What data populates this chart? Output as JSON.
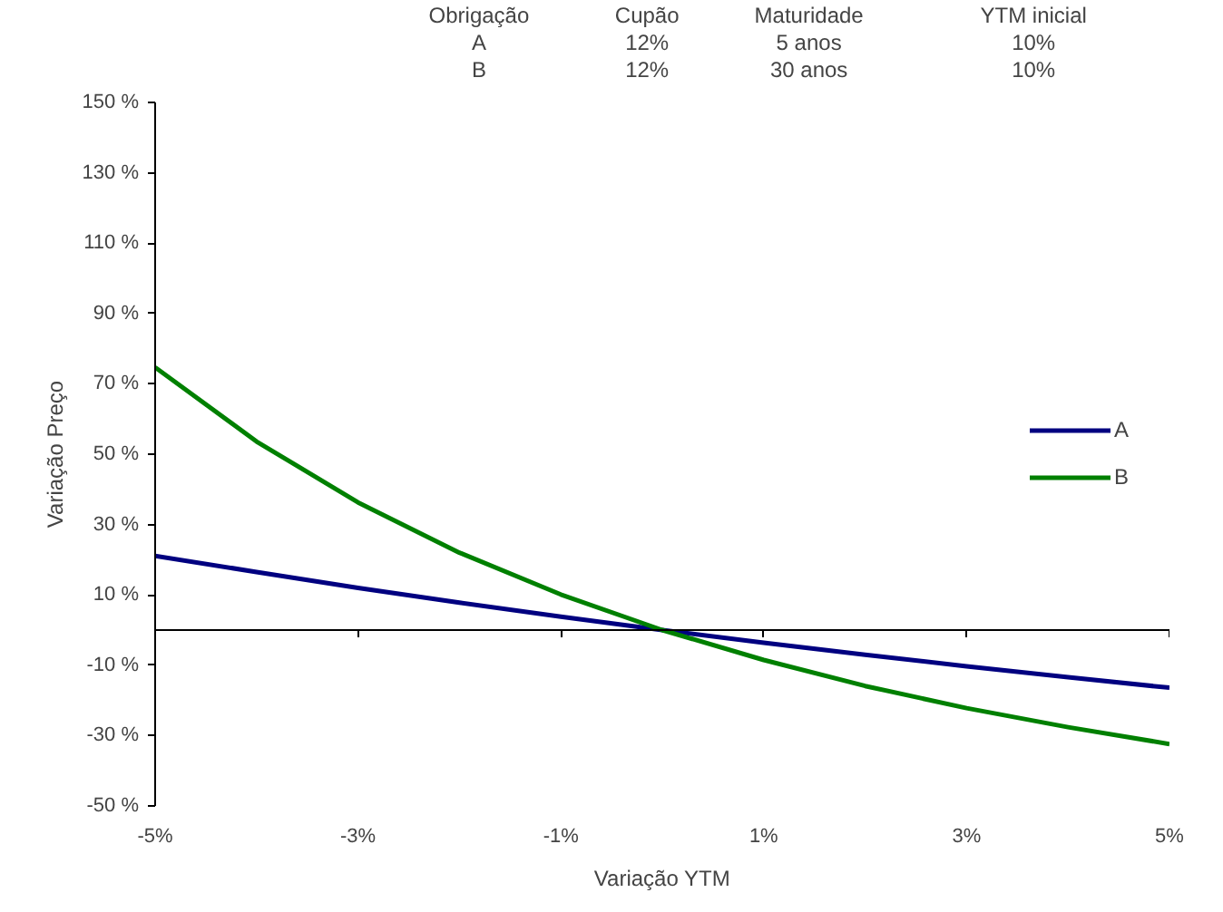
{
  "chart_data": {
    "type": "line",
    "xlabel": "Variação YTM",
    "ylabel": "Variação Preço",
    "x": [
      -5,
      -4,
      -3,
      -2,
      -1,
      0,
      1,
      2,
      3,
      4,
      5
    ],
    "series": [
      {
        "name": "A",
        "color": "#000080",
        "values": [
          21.1,
          16.5,
          12.0,
          7.8,
          3.8,
          0,
          -3.6,
          -7.0,
          -10.3,
          -13.4,
          -16.4
        ]
      },
      {
        "name": "B",
        "color": "#008000",
        "values": [
          74.7,
          53.6,
          36.3,
          22.0,
          10.1,
          0,
          -8.5,
          -15.9,
          -22.2,
          -27.6,
          -32.4
        ]
      }
    ],
    "xlim": [
      -5,
      5
    ],
    "ylim": [
      -50,
      150
    ],
    "xticks": [
      {
        "value": -5,
        "label": "-5%"
      },
      {
        "value": -3,
        "label": "-3%"
      },
      {
        "value": -1,
        "label": "-1%"
      },
      {
        "value": 1,
        "label": "1%"
      },
      {
        "value": 3,
        "label": "3%"
      },
      {
        "value": 5,
        "label": "5%"
      }
    ],
    "yticks": [
      {
        "value": -50,
        "label": "-50 %"
      },
      {
        "value": -30,
        "label": "-30 %"
      },
      {
        "value": -10,
        "label": "-10 %"
      },
      {
        "value": 10,
        "label": "10 %"
      },
      {
        "value": 30,
        "label": "30 %"
      },
      {
        "value": 50,
        "label": "50 %"
      },
      {
        "value": 70,
        "label": "70 %"
      },
      {
        "value": 90,
        "label": "90 %"
      },
      {
        "value": 110,
        "label": "110 %"
      },
      {
        "value": 130,
        "label": "130 %"
      },
      {
        "value": 150,
        "label": "150 %"
      }
    ],
    "annotations": [
      "Obrigação",
      "Cupão",
      "Maturidade",
      "YTM inicial",
      "A",
      "12%",
      "5 anos",
      "10%",
      "B",
      "12%",
      "30 anos",
      "10%"
    ],
    "grid": false,
    "legend": "right",
    "marker": "none",
    "line_style": "solid"
  }
}
